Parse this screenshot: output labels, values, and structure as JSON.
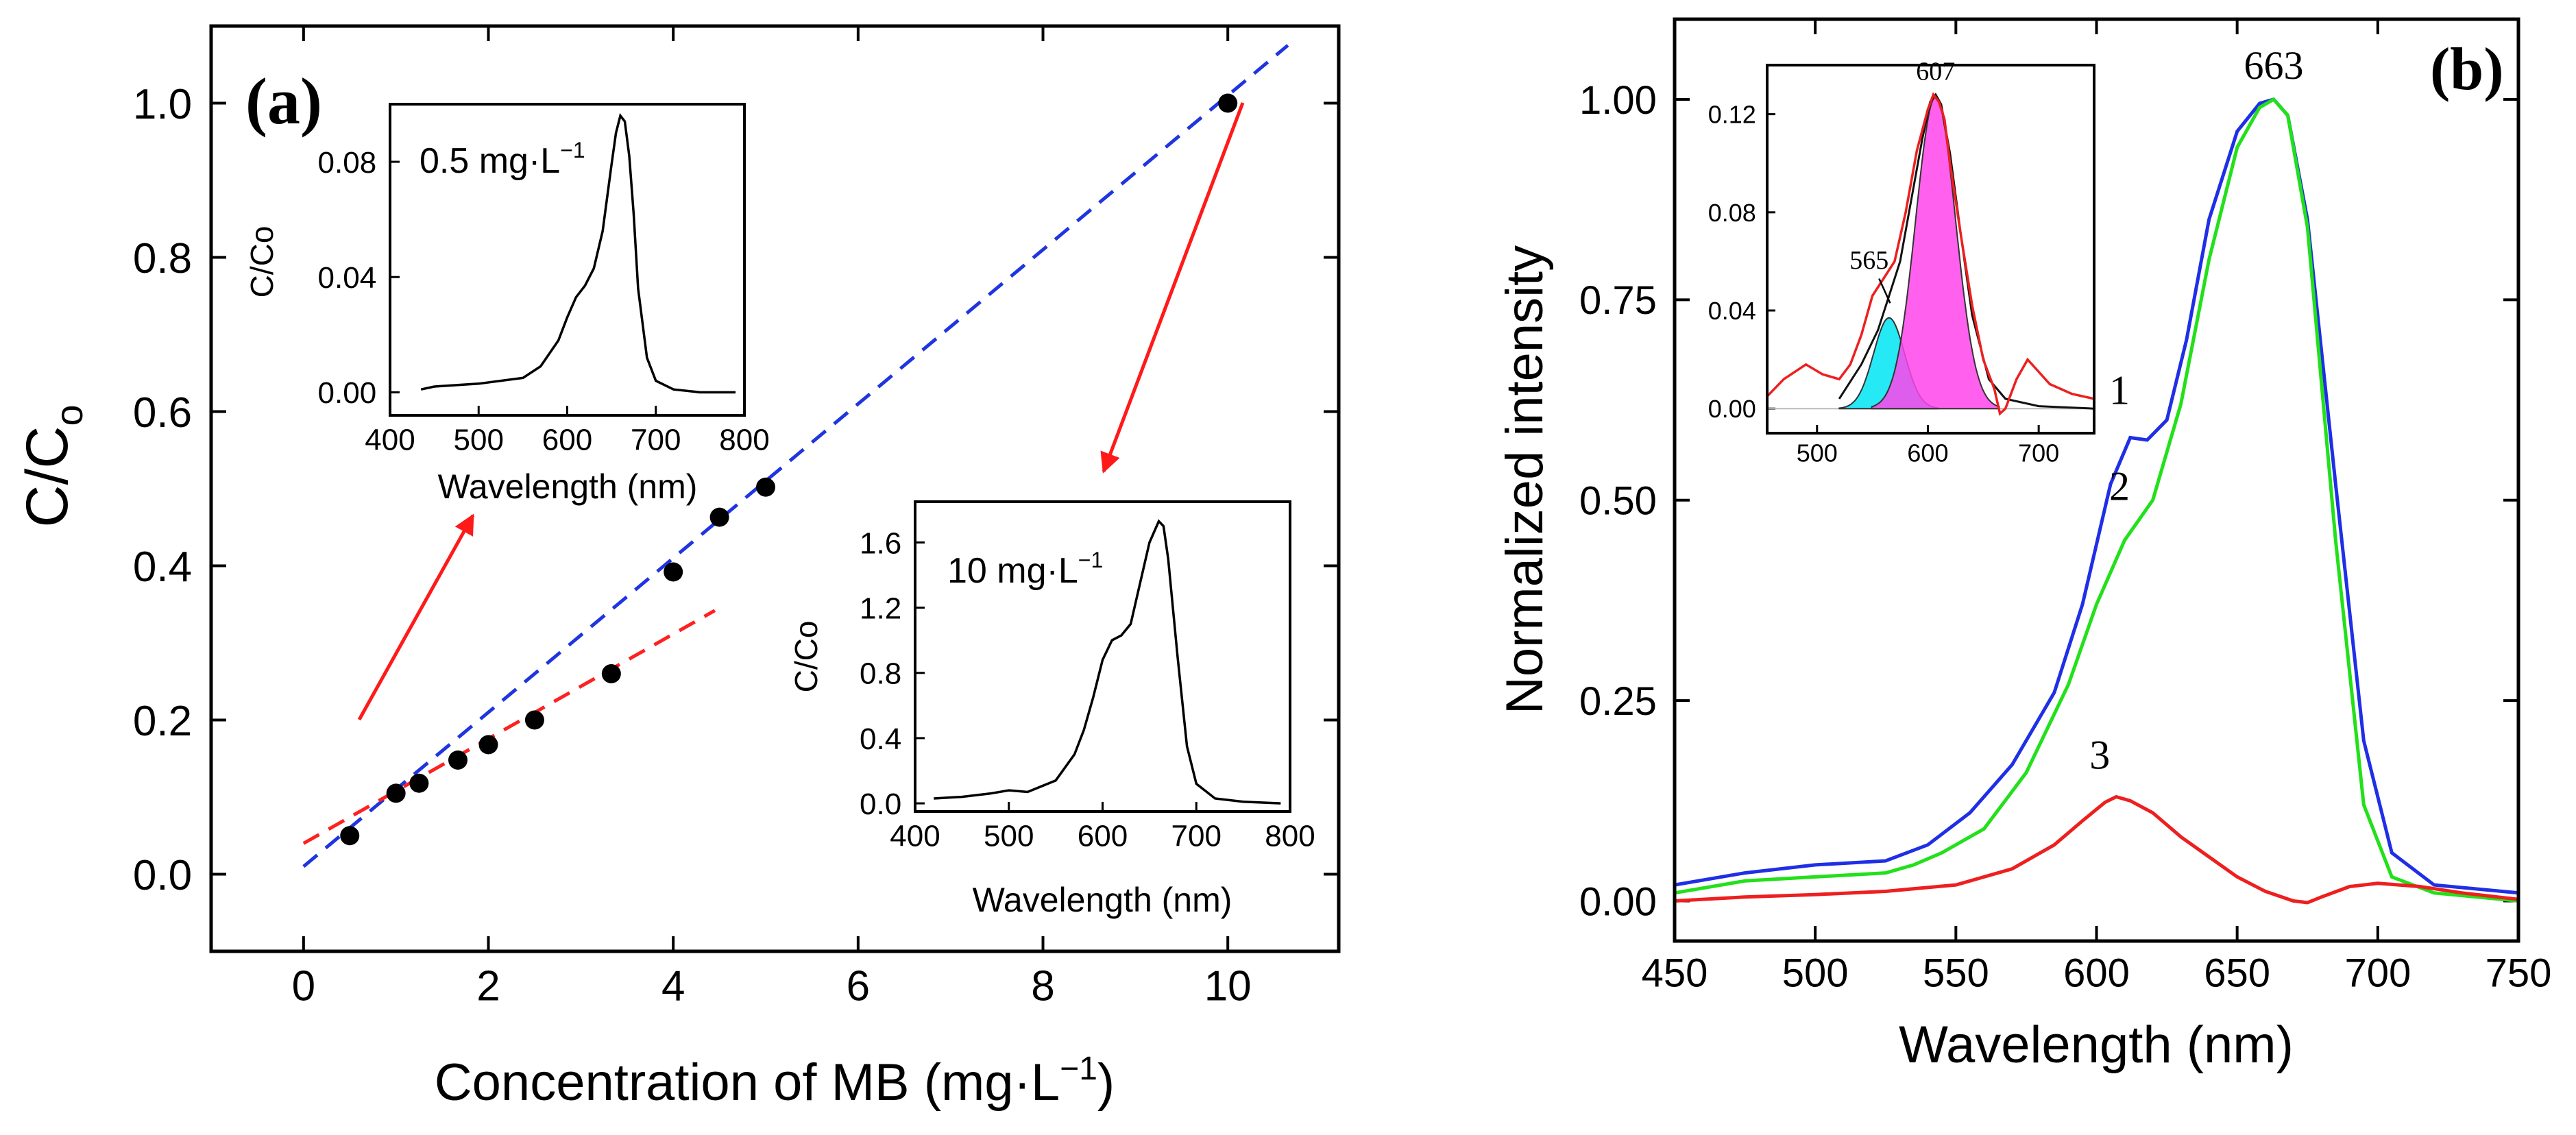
{
  "chart_data": [
    {
      "panel": "a",
      "type": "scatter",
      "label": "(a)",
      "xlabel_main": "Concentration of MB (mg·L",
      "xlabel_sup": "−1",
      "xlabel_end": ")",
      "ylabel_main": "C/C",
      "ylabel_sub": "o",
      "xlim": [
        -1,
        11.2
      ],
      "ylim": [
        -0.1,
        1.1
      ],
      "xticks": [
        0,
        2,
        4,
        6,
        8,
        10
      ],
      "yticks": [
        0.0,
        0.2,
        0.4,
        0.6,
        0.8,
        1.0
      ],
      "points": {
        "x": [
          0.5,
          1.0,
          1.25,
          1.67,
          2.0,
          2.5,
          3.33,
          4.0,
          4.5,
          5.0,
          10.0
        ],
        "y": [
          0.05,
          0.105,
          0.118,
          0.148,
          0.168,
          0.2,
          0.26,
          0.392,
          0.463,
          0.502,
          1.0
        ]
      },
      "fit_lines": [
        {
          "name": "high-concentration fit",
          "color": "#1f35e0",
          "x": [
            0.0,
            10.65
          ],
          "y": [
            0.01,
            1.075
          ]
        },
        {
          "name": "low-concentration fit",
          "color": "#ff2020",
          "x": [
            0.0,
            4.45
          ],
          "y": [
            0.04,
            0.342
          ]
        }
      ],
      "insets": [
        {
          "name": "inset-low",
          "label_main": "0.5 mg·L",
          "label_sup": "−1",
          "xlabel": "Wavelength (nm)",
          "ylabel": "C/Co",
          "xlim": [
            400,
            800
          ],
          "ylim": [
            -0.008,
            0.1
          ],
          "xticks": [
            400,
            500,
            600,
            700,
            800
          ],
          "yticks": [
            0.0,
            0.04,
            0.08
          ],
          "ytick_labels": [
            "0.00",
            "0.04",
            "0.08"
          ],
          "x": [
            435,
            450,
            500,
            550,
            570,
            590,
            600,
            610,
            620,
            630,
            640,
            650,
            655,
            660,
            665,
            670,
            675,
            680,
            690,
            700,
            720,
            750,
            790
          ],
          "y": [
            0.001,
            0.002,
            0.003,
            0.005,
            0.009,
            0.018,
            0.026,
            0.033,
            0.037,
            0.043,
            0.056,
            0.079,
            0.09,
            0.096,
            0.094,
            0.082,
            0.062,
            0.036,
            0.012,
            0.004,
            0.001,
            0.0,
            0.0
          ]
        },
        {
          "name": "inset-high",
          "label_main": "10 mg·L",
          "label_sup": "−1",
          "xlabel": "Wavelength (nm)",
          "ylabel": "C/Co",
          "xlim": [
            400,
            800
          ],
          "ylim": [
            -0.05,
            1.85
          ],
          "xticks": [
            400,
            500,
            600,
            700,
            800
          ],
          "yticks": [
            0.0,
            0.4,
            0.8,
            1.2,
            1.6
          ],
          "ytick_labels": [
            "0.0",
            "0.4",
            "0.8",
            "1.2",
            "1.6"
          ],
          "x": [
            420,
            450,
            480,
            500,
            520,
            550,
            570,
            580,
            590,
            600,
            610,
            620,
            630,
            640,
            650,
            660,
            665,
            670,
            680,
            690,
            700,
            720,
            750,
            790
          ],
          "y": [
            0.03,
            0.04,
            0.06,
            0.08,
            0.07,
            0.14,
            0.3,
            0.45,
            0.65,
            0.88,
            1.0,
            1.03,
            1.1,
            1.35,
            1.6,
            1.73,
            1.7,
            1.5,
            0.9,
            0.35,
            0.12,
            0.03,
            0.01,
            0.0
          ]
        }
      ],
      "arrows": [
        "0.5 mg/L point to low-concentration inset",
        "10 mg/L point to high-concentration inset"
      ]
    },
    {
      "panel": "b",
      "type": "line",
      "label": "(b)",
      "xlabel": "Wavelength (nm)",
      "ylabel": "Normalized intensity",
      "xlim": [
        450,
        750
      ],
      "ylim": [
        -0.05,
        1.1
      ],
      "xticks": [
        450,
        500,
        550,
        600,
        650,
        700,
        750
      ],
      "yticks": [
        0.0,
        0.25,
        0.5,
        0.75,
        1.0
      ],
      "ytick_labels": [
        "0.00",
        "0.25",
        "0.50",
        "0.75",
        "1.00"
      ],
      "peak_label": "663",
      "series": [
        {
          "name": "1",
          "color": "#1f2fe6",
          "label_x": 614,
          "label_y": 0.62,
          "x": [
            450,
            475,
            500,
            525,
            540,
            555,
            570,
            585,
            595,
            605,
            612,
            618,
            625,
            632,
            640,
            650,
            658,
            663,
            668,
            675,
            685,
            695,
            705,
            720,
            750
          ],
          "y": [
            0.02,
            0.035,
            0.045,
            0.05,
            0.07,
            0.11,
            0.17,
            0.26,
            0.37,
            0.52,
            0.578,
            0.575,
            0.6,
            0.7,
            0.85,
            0.96,
            0.995,
            1.0,
            0.98,
            0.85,
            0.52,
            0.2,
            0.06,
            0.02,
            0.01
          ]
        },
        {
          "name": "2",
          "color": "#22e01a",
          "label_x": 614,
          "label_y": 0.5,
          "x": [
            450,
            475,
            500,
            525,
            535,
            545,
            560,
            575,
            590,
            600,
            610,
            620,
            630,
            640,
            650,
            658,
            663,
            668,
            675,
            685,
            695,
            705,
            720,
            750
          ],
          "y": [
            0.01,
            0.025,
            0.03,
            0.035,
            0.045,
            0.06,
            0.09,
            0.16,
            0.27,
            0.37,
            0.45,
            0.5,
            0.62,
            0.8,
            0.94,
            0.99,
            1.0,
            0.98,
            0.84,
            0.45,
            0.12,
            0.03,
            0.01,
            0.0
          ]
        },
        {
          "name": "3",
          "color": "#ee1f1f",
          "label_x": 607,
          "label_y": 0.165,
          "x": [
            450,
            475,
            500,
            525,
            550,
            570,
            585,
            595,
            603,
            607,
            612,
            620,
            630,
            640,
            650,
            660,
            670,
            675,
            680,
            690,
            700,
            715,
            730,
            750
          ],
          "y": [
            0.0,
            0.005,
            0.008,
            0.012,
            0.02,
            0.04,
            0.07,
            0.1,
            0.123,
            0.13,
            0.125,
            0.11,
            0.08,
            0.055,
            0.03,
            0.012,
            0.0,
            -0.002,
            0.005,
            0.018,
            0.022,
            0.018,
            0.01,
            0.002
          ]
        }
      ],
      "inset": {
        "xlim": [
          455,
          750
        ],
        "ylim": [
          -0.01,
          0.14
        ],
        "xticks": [
          500,
          600,
          700
        ],
        "yticks": [
          0.0,
          0.04,
          0.08,
          0.12
        ],
        "ytick_labels": [
          "0.00",
          "0.04",
          "0.08",
          "0.12"
        ],
        "peak_labels": [
          "565",
          "607"
        ],
        "red_trace": {
          "color": "#ee1f1f",
          "x": [
            455,
            470,
            490,
            505,
            520,
            530,
            540,
            550,
            560,
            570,
            580,
            590,
            600,
            605,
            610,
            615,
            620,
            630,
            640,
            650,
            660,
            665,
            670,
            680,
            690,
            700,
            710,
            730,
            750
          ],
          "y": [
            0.005,
            0.012,
            0.018,
            0.014,
            0.012,
            0.018,
            0.03,
            0.046,
            0.053,
            0.06,
            0.08,
            0.105,
            0.122,
            0.128,
            0.125,
            0.118,
            0.1,
            0.07,
            0.042,
            0.02,
            0.008,
            -0.002,
            0.0,
            0.012,
            0.02,
            0.015,
            0.01,
            0.006,
            0.004
          ]
        },
        "fit_envelope": {
          "color": "#111111",
          "x": [
            520,
            540,
            555,
            565,
            575,
            585,
            595,
            602,
            607,
            612,
            620,
            630,
            640,
            655,
            670,
            700,
            750
          ],
          "y": [
            0.004,
            0.018,
            0.032,
            0.046,
            0.06,
            0.085,
            0.11,
            0.125,
            0.128,
            0.124,
            0.104,
            0.07,
            0.038,
            0.012,
            0.004,
            0.001,
            0.0
          ]
        },
        "bands": [
          {
            "name": "565 nm band",
            "color": "#00e5f5",
            "center": 565,
            "height": 0.037,
            "sigma": 14
          },
          {
            "name": "607 nm band",
            "color": "#ff44ea",
            "center": 607,
            "height": 0.127,
            "sigma": 18
          }
        ]
      }
    }
  ]
}
